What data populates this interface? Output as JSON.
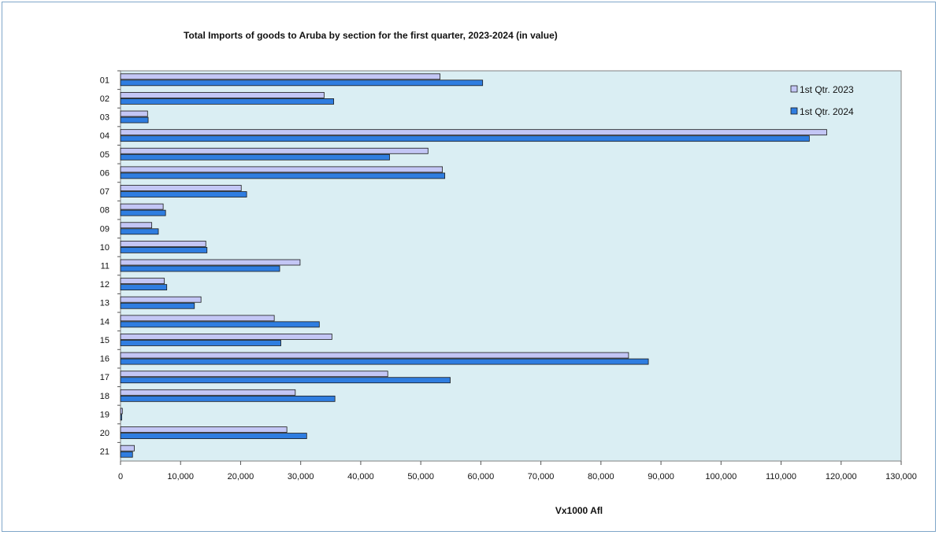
{
  "chart_data": {
    "type": "bar",
    "orientation": "horizontal",
    "title": "Total Imports of goods to Aruba by section for the first quarter, 2023-2024 (in value)",
    "xlabel": "Vx1000 Afl",
    "ylabel": "",
    "categories": [
      "01",
      "02",
      "03",
      "04",
      "05",
      "06",
      "07",
      "08",
      "09",
      "10",
      "11",
      "12",
      "13",
      "14",
      "15",
      "16",
      "17",
      "18",
      "19",
      "20",
      "21"
    ],
    "series": [
      {
        "name": "1st Qtr. 2023",
        "color": "#c3c6f5",
        "values": [
          53200,
          33900,
          4500,
          117600,
          51200,
          53600,
          20100,
          7100,
          5200,
          14200,
          29900,
          7300,
          13400,
          25600,
          35200,
          84600,
          44500,
          29100,
          300,
          27700,
          2300
        ]
      },
      {
        "name": "1st Qtr. 2024",
        "color": "#2f7de0",
        "values": [
          60300,
          35500,
          4600,
          114700,
          44800,
          54000,
          21000,
          7500,
          6300,
          14400,
          26500,
          7700,
          12300,
          33100,
          26700,
          87900,
          54900,
          35700,
          200,
          31000,
          2000
        ]
      }
    ],
    "xlim": [
      0,
      130000
    ],
    "xticks": [
      0,
      10000,
      20000,
      30000,
      40000,
      50000,
      60000,
      70000,
      80000,
      90000,
      100000,
      110000,
      120000,
      130000
    ],
    "xtick_labels": [
      "0",
      "10,000",
      "20,000",
      "30,000",
      "40,000",
      "50,000",
      "60,000",
      "70,000",
      "80,000",
      "90,000",
      "100,000",
      "110,000",
      "120,000",
      "130,000"
    ],
    "plot_background": "#daeef3",
    "grid": false,
    "legend_position": "top-right"
  }
}
